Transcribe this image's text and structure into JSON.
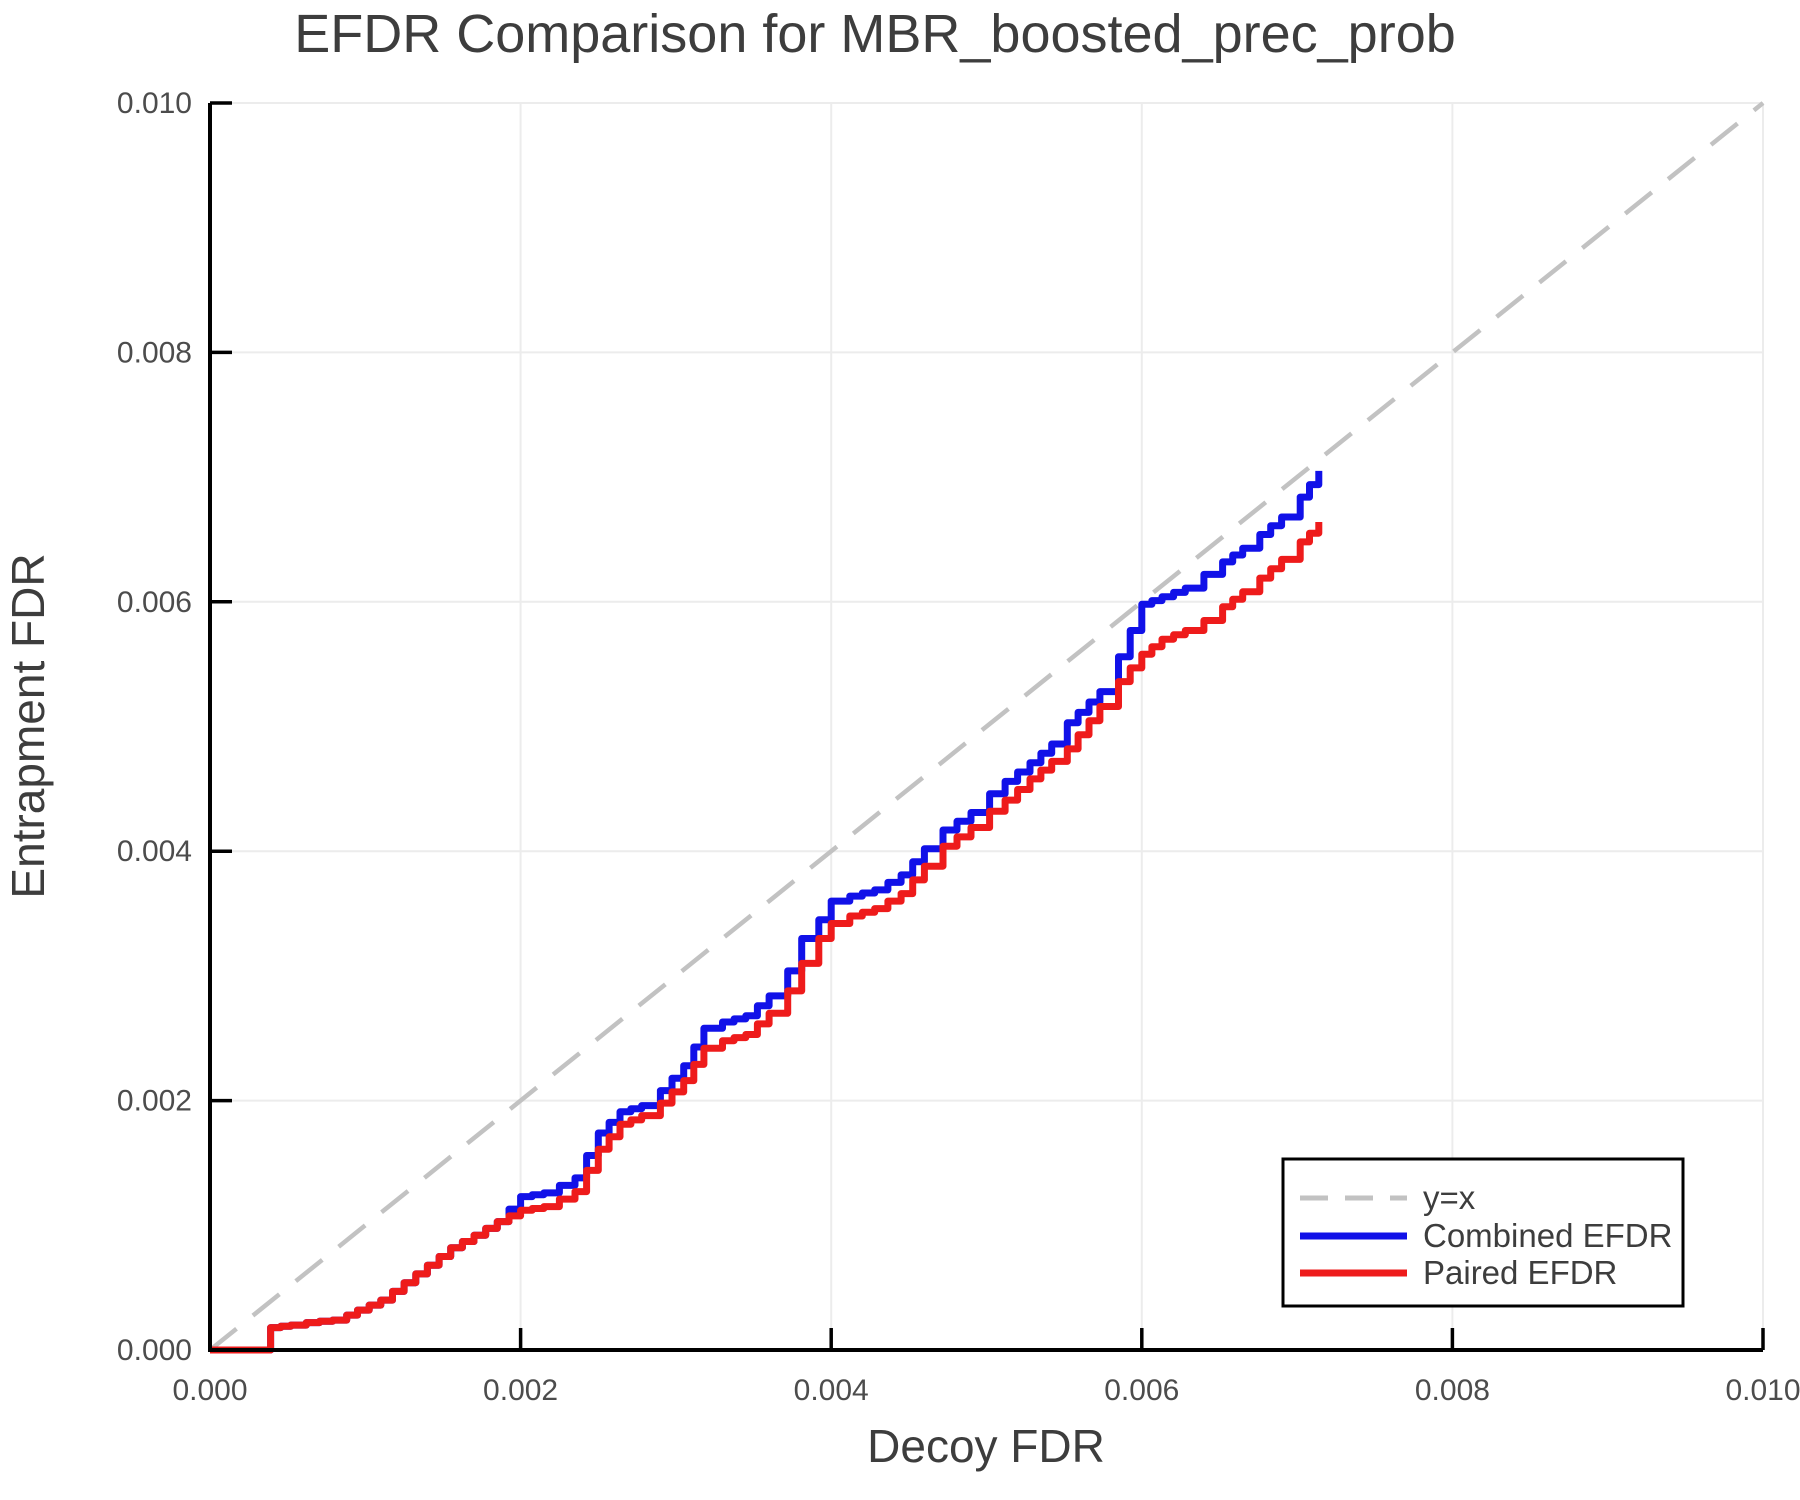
{
  "title": "EFDR Comparison for MBR_boosted_prec_prob",
  "axes": {
    "x_label": "Decoy FDR",
    "y_label": "Entrapment FDR",
    "x_tick_labels": [
      "0.000",
      "0.002",
      "0.004",
      "0.006",
      "0.008",
      "0.010"
    ],
    "y_tick_labels": [
      "0.000",
      "0.002",
      "0.004",
      "0.006",
      "0.008",
      "0.010"
    ]
  },
  "legend": {
    "position": "lower right",
    "items": [
      {
        "label": "y=x",
        "color": "#c2c2c2",
        "dashed": true
      },
      {
        "label": "Combined EFDR",
        "color": "#1111e8",
        "dashed": false
      },
      {
        "label": "Paired EFDR",
        "color": "#ee1b1b",
        "dashed": false
      }
    ]
  },
  "colors": {
    "grid": "#ececec",
    "spine": "#000000",
    "reference": "#c2c2c2",
    "combined": "#1111e8",
    "paired": "#ee1b1b"
  },
  "chart_data": {
    "type": "line",
    "title": "EFDR Comparison for MBR_boosted_prec_prob",
    "xlabel": "Decoy FDR",
    "ylabel": "Entrapment FDR",
    "xlim": [
      0.0,
      0.01
    ],
    "ylim": [
      0.0,
      0.01
    ],
    "x_ticks": [
      0.0,
      0.002,
      0.004,
      0.006,
      0.008,
      0.01
    ],
    "y_ticks": [
      0.0,
      0.002,
      0.004,
      0.006,
      0.008,
      0.01
    ],
    "grid": true,
    "legend_position": "lower right",
    "reference_line": {
      "name": "y=x",
      "x": [
        0.0,
        0.01
      ],
      "y": [
        0.0,
        0.01
      ],
      "style": "dashed",
      "color": "#c2c2c2"
    },
    "series": [
      {
        "name": "Combined EFDR",
        "color": "#1111e8",
        "style": "step",
        "x": [
          0.0,
          0.00039,
          0.00039,
          0.00052,
          0.00062,
          0.00079,
          0.00088,
          0.00095,
          0.0011,
          0.00125,
          0.0014,
          0.00155,
          0.0017,
          0.00185,
          0.002,
          0.00215,
          0.00235,
          0.0025,
          0.00264,
          0.00278,
          0.0029,
          0.00305,
          0.00318,
          0.0033,
          0.00345,
          0.0036,
          0.00372,
          0.00381,
          0.00392,
          0.004,
          0.00412,
          0.00428,
          0.00445,
          0.0046,
          0.00472,
          0.0049,
          0.00502,
          0.00512,
          0.00528,
          0.00542,
          0.00552,
          0.00573,
          0.00585,
          0.006,
          0.00613,
          0.00628,
          0.0064,
          0.00652,
          0.00665,
          0.00676,
          0.0069,
          0.00702,
          0.00708,
          0.00714
        ],
        "y": [
          0.0,
          0.0,
          0.00018,
          0.0002,
          0.00022,
          0.00024,
          0.00028,
          0.00032,
          0.0004,
          0.00054,
          0.00068,
          0.00082,
          0.00092,
          0.00103,
          0.00123,
          0.00126,
          0.00138,
          0.00174,
          0.00191,
          0.00196,
          0.00208,
          0.00228,
          0.00258,
          0.00263,
          0.00268,
          0.00284,
          0.00304,
          0.0033,
          0.00345,
          0.0036,
          0.00364,
          0.00369,
          0.00381,
          0.00402,
          0.00417,
          0.00431,
          0.00446,
          0.00456,
          0.00471,
          0.00486,
          0.00503,
          0.00528,
          0.00556,
          0.00598,
          0.00604,
          0.00611,
          0.00622,
          0.00632,
          0.00643,
          0.00654,
          0.00668,
          0.00684,
          0.00694,
          0.00705
        ]
      },
      {
        "name": "Paired EFDR",
        "color": "#ee1b1b",
        "style": "step",
        "x": [
          0.0,
          0.00039,
          0.00039,
          0.00052,
          0.00062,
          0.00079,
          0.00088,
          0.00095,
          0.0011,
          0.00125,
          0.0014,
          0.00155,
          0.0017,
          0.00185,
          0.002,
          0.00215,
          0.00235,
          0.0025,
          0.00264,
          0.00278,
          0.0029,
          0.00305,
          0.00318,
          0.0033,
          0.00345,
          0.0036,
          0.00372,
          0.00381,
          0.00392,
          0.004,
          0.00412,
          0.00428,
          0.00445,
          0.0046,
          0.00472,
          0.0049,
          0.00502,
          0.00512,
          0.00528,
          0.00542,
          0.00552,
          0.00573,
          0.00585,
          0.006,
          0.00613,
          0.00628,
          0.0064,
          0.00652,
          0.00665,
          0.00676,
          0.0069,
          0.00702,
          0.00708,
          0.00714
        ],
        "y": [
          0.0,
          0.0,
          0.00018,
          0.0002,
          0.00022,
          0.00024,
          0.00028,
          0.00032,
          0.0004,
          0.00054,
          0.00068,
          0.00082,
          0.00092,
          0.00103,
          0.00112,
          0.00115,
          0.00127,
          0.00161,
          0.00181,
          0.00188,
          0.00198,
          0.00216,
          0.00242,
          0.00248,
          0.00253,
          0.0027,
          0.00288,
          0.0031,
          0.0033,
          0.00342,
          0.00348,
          0.00354,
          0.00366,
          0.00388,
          0.00404,
          0.00419,
          0.00432,
          0.00441,
          0.00458,
          0.00472,
          0.00482,
          0.00516,
          0.00536,
          0.00558,
          0.0057,
          0.00577,
          0.00585,
          0.00596,
          0.00608,
          0.00619,
          0.00634,
          0.00648,
          0.00655,
          0.00664
        ]
      }
    ]
  }
}
